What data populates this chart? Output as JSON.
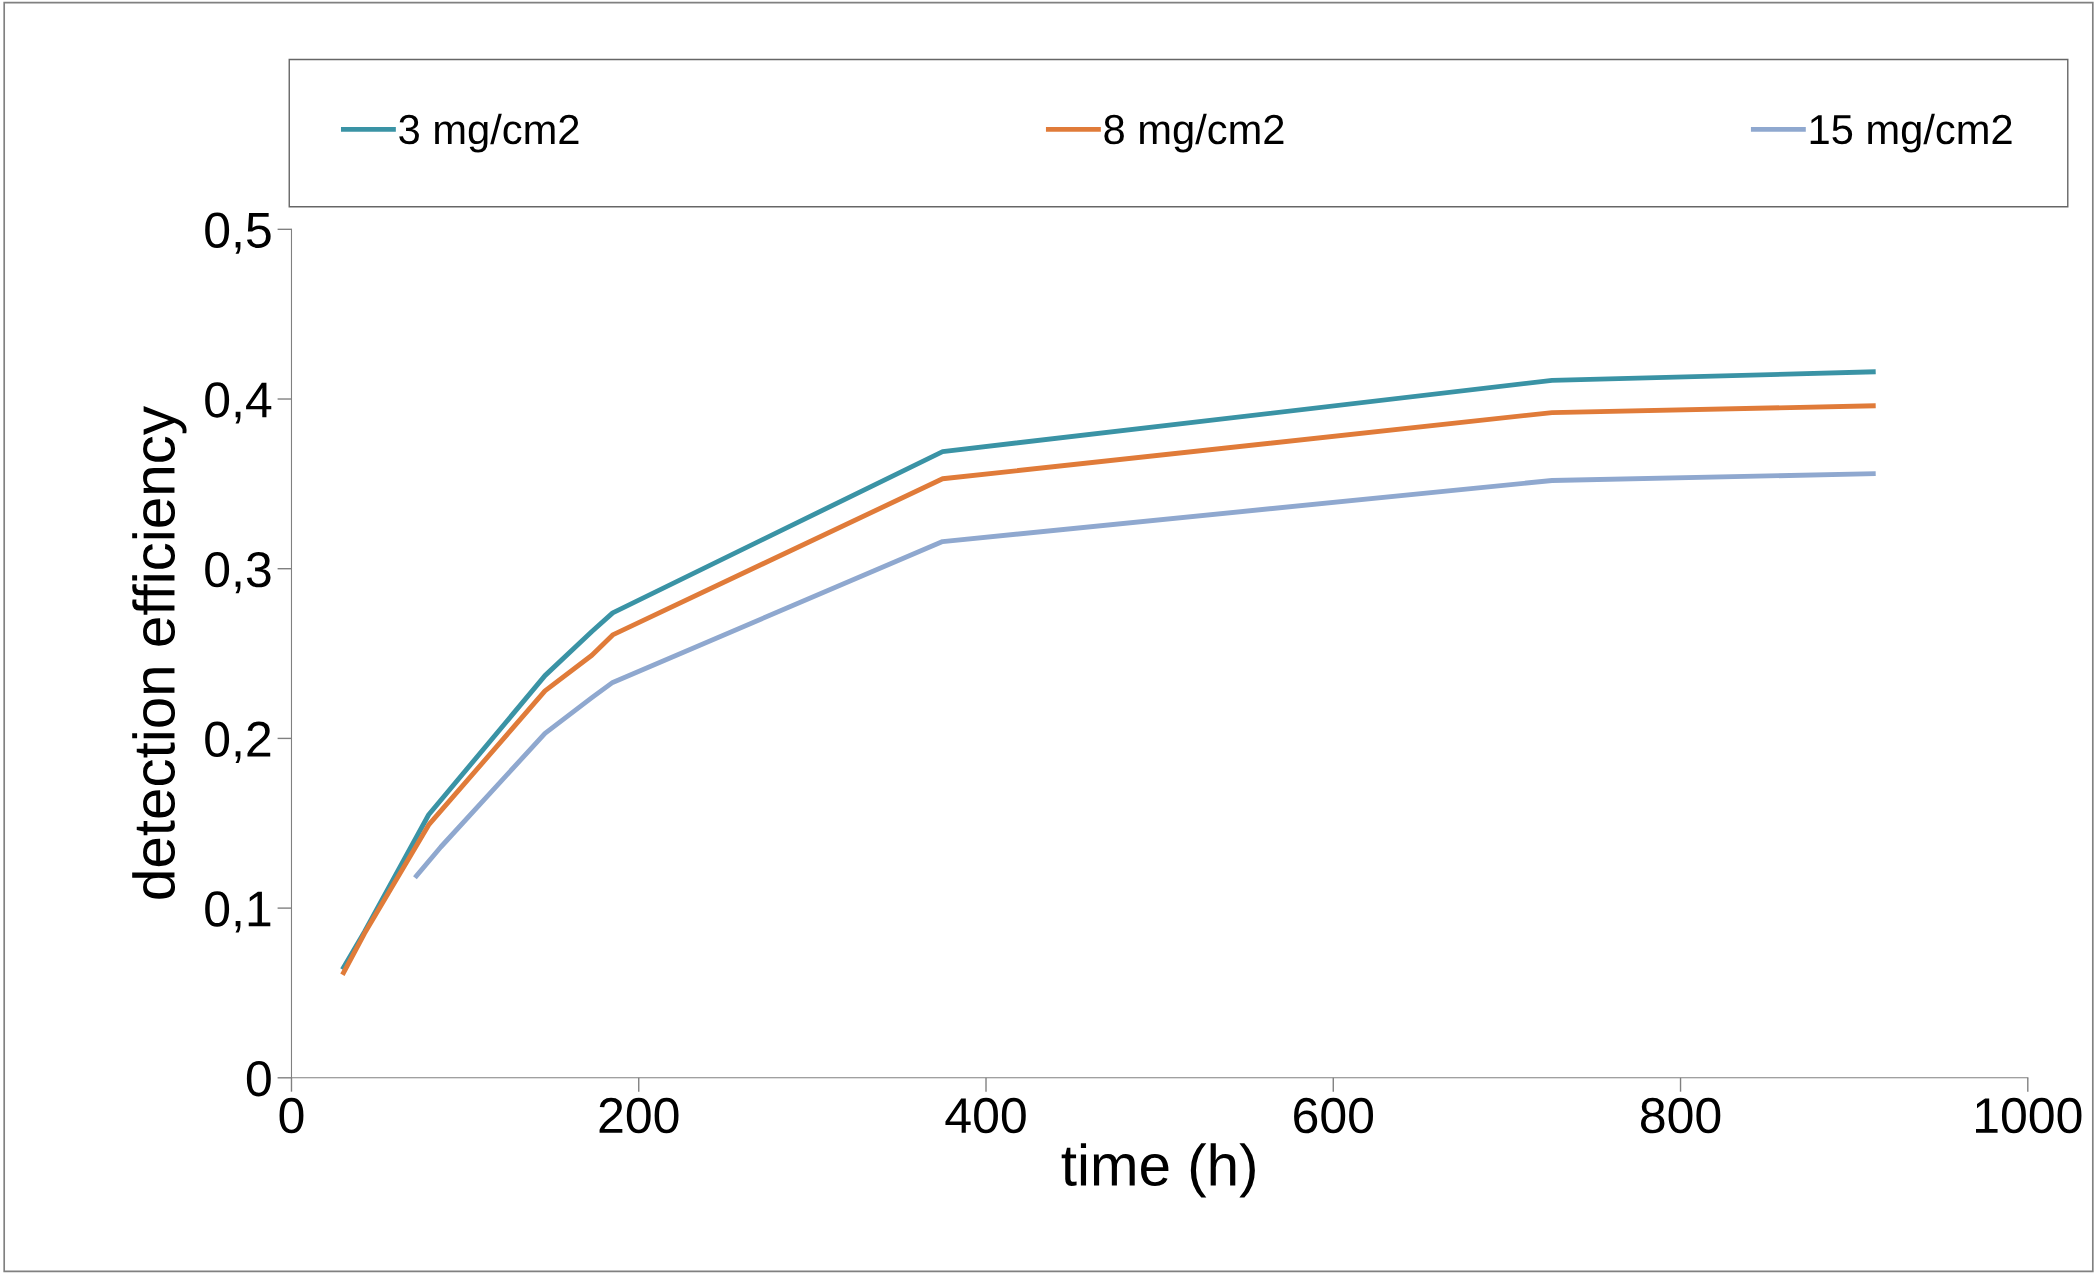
{
  "chart_data": {
    "type": "line",
    "xlabel": "time (h)",
    "ylabel": "detection efficiency",
    "xlim": [
      0,
      1000
    ],
    "xticks": [
      0,
      200,
      400,
      600,
      800,
      1000
    ],
    "ylim": [
      0,
      0.5
    ],
    "yticks": [
      {
        "value": 0,
        "label": "0"
      },
      {
        "value": 0.1,
        "label": "0,1"
      },
      {
        "value": 0.2,
        "label": "0,2"
      },
      {
        "value": 0.3,
        "label": "0,3"
      },
      {
        "value": 0.4,
        "label": "0,4"
      },
      {
        "value": 0.5,
        "label": "0,5"
      }
    ],
    "grid": false,
    "legend": "top",
    "marker": "none",
    "line_style": "solid",
    "series": [
      {
        "name": "3 mg/cm2",
        "color": "#3a93a5",
        "x": [
          30,
          42,
          79,
          146,
          173,
          185,
          375,
          726,
          911
        ],
        "values": [
          0.065,
          0.086,
          0.155,
          0.237,
          0.263,
          0.274,
          0.369,
          0.411,
          0.416
        ]
      },
      {
        "name": "8 mg/cm2",
        "color": "#e07b39",
        "x": [
          30,
          42,
          79,
          146,
          173,
          185,
          375,
          726,
          911
        ],
        "values": [
          0.062,
          0.085,
          0.149,
          0.228,
          0.249,
          0.261,
          0.353,
          0.392,
          0.396
        ]
      },
      {
        "name": "15 mg/cm2",
        "color": "#8fa8cf",
        "x": [
          72,
          86,
          146,
          173,
          185,
          375,
          726,
          911
        ],
        "values": [
          0.119,
          0.136,
          0.203,
          0.224,
          0.233,
          0.316,
          0.352,
          0.356
        ]
      }
    ]
  }
}
